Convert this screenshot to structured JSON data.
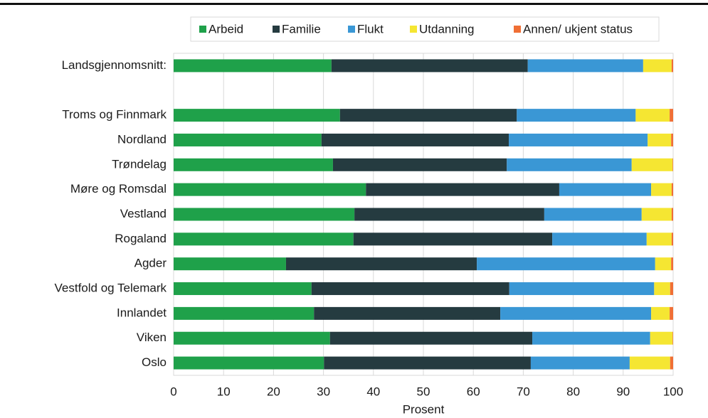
{
  "chart_data": {
    "type": "stacked-bar-horizontal",
    "xlabel": "Prosent",
    "categories": [
      "Landsgjennomsnitt:",
      null,
      "Troms og Finnmark",
      "Nordland",
      "Trøndelag",
      "Møre og Romsdal",
      "Vestland",
      "Rogaland",
      "Agder",
      "Vestfold og Telemark",
      "Innlandet",
      "Viken",
      "Oslo"
    ],
    "series": [
      {
        "name": "Arbeid",
        "color": "#1fa14a",
        "values": [
          31.6,
          null,
          33.3,
          29.6,
          31.9,
          38.5,
          36.2,
          36.0,
          22.5,
          27.6,
          28.1,
          31.3,
          30.1
        ]
      },
      {
        "name": "Familie",
        "color": "#253b40",
        "values": [
          39.3,
          null,
          35.4,
          37.5,
          34.8,
          38.7,
          38.0,
          39.8,
          38.2,
          39.6,
          37.3,
          40.5,
          41.4
        ]
      },
      {
        "name": "Flukt",
        "color": "#3a97d5",
        "values": [
          23.1,
          null,
          23.8,
          27.8,
          25.0,
          18.4,
          19.5,
          18.9,
          35.7,
          29.0,
          30.2,
          23.6,
          19.8
        ]
      },
      {
        "name": "Utdanning",
        "color": "#f5e632",
        "values": [
          5.7,
          null,
          6.8,
          4.7,
          8.2,
          4.1,
          6.0,
          5.0,
          3.2,
          3.2,
          3.7,
          4.5,
          8.1
        ]
      },
      {
        "name": "Annen/ ukjent status",
        "color": "#f06f35",
        "values": [
          0.3,
          null,
          0.7,
          0.4,
          0.1,
          0.3,
          0.3,
          0.3,
          0.4,
          0.6,
          0.7,
          0.1,
          0.6
        ]
      }
    ],
    "xlim": [
      0,
      100
    ],
    "xticks": [
      0,
      10,
      20,
      30,
      40,
      50,
      60,
      70,
      80,
      90,
      100
    ],
    "grid": true,
    "legend": "top"
  }
}
